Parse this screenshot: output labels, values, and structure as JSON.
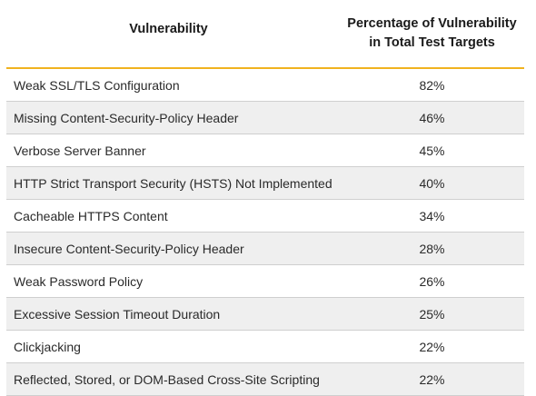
{
  "table": {
    "headers": {
      "vulnerability": "Vulnerability",
      "percentage": "Percentage of Vulnerability in Total Test Targets"
    },
    "rows": [
      {
        "name": "Weak SSL/TLS Configuration",
        "percentage": "82%"
      },
      {
        "name": "Missing Content-Security-Policy Header",
        "percentage": "46%"
      },
      {
        "name": "Verbose Server Banner",
        "percentage": "45%"
      },
      {
        "name": "HTTP Strict Transport Security (HSTS) Not Implemented",
        "percentage": "40%"
      },
      {
        "name": "Cacheable HTTPS Content",
        "percentage": "34%"
      },
      {
        "name": "Insecure Content-Security-Policy Header",
        "percentage": "28%"
      },
      {
        "name": "Weak Password Policy",
        "percentage": "26%"
      },
      {
        "name": "Excessive Session Timeout Duration",
        "percentage": "25%"
      },
      {
        "name": "Clickjacking",
        "percentage": "22%"
      },
      {
        "name": "Reflected, Stored, or DOM-Based Cross-Site Scripting",
        "percentage": "22%"
      }
    ]
  },
  "colors": {
    "header_rule": "#f0b21f",
    "row_stripe": "#efefef",
    "row_divider": "#cfcfcf"
  }
}
